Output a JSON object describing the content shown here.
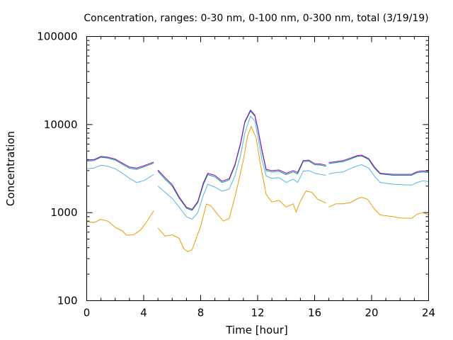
{
  "chart_data": {
    "type": "line",
    "title": "Concentration, ranges: 0-30 nm, 0-100 nm, 0-300 nm, total (3/19/19)",
    "xlabel": "Time [hour]",
    "ylabel": "Concentration",
    "xlim": [
      0,
      24
    ],
    "ylim": [
      100,
      100000
    ],
    "yscale": "log",
    "grid": false,
    "legend": "none",
    "x_ticks": [
      0,
      4,
      8,
      12,
      16,
      20,
      24
    ],
    "x_tick_labels": [
      "0",
      "4",
      "8",
      "12",
      "16",
      "20",
      "24"
    ],
    "y_ticks": [
      100,
      1000,
      10000,
      100000
    ],
    "y_tick_labels": [
      "100",
      "1000",
      "10000",
      "100000"
    ],
    "series": [
      {
        "color": "#e5a000",
        "segments": [
          [
            [
              0.0,
              790
            ],
            [
              0.5,
              770
            ],
            [
              1.0,
              840
            ],
            [
              1.5,
              800
            ],
            [
              2.0,
              680
            ],
            [
              2.5,
              620
            ],
            [
              2.8,
              555
            ],
            [
              3.3,
              560
            ],
            [
              3.8,
              640
            ],
            [
              4.2,
              780
            ],
            [
              4.7,
              1050
            ]
          ],
          [
            [
              5.0,
              670
            ],
            [
              5.5,
              540
            ],
            [
              6.0,
              560
            ],
            [
              6.5,
              510
            ],
            [
              6.8,
              390
            ],
            [
              7.1,
              360
            ],
            [
              7.4,
              380
            ],
            [
              8.0,
              700
            ],
            [
              8.4,
              1250
            ],
            [
              8.7,
              1200
            ],
            [
              9.2,
              950
            ],
            [
              9.6,
              800
            ],
            [
              10.0,
              860
            ],
            [
              10.4,
              1500
            ],
            [
              10.7,
              2400
            ],
            [
              11.0,
              4000
            ],
            [
              11.3,
              7500
            ],
            [
              11.55,
              9500
            ],
            [
              11.9,
              7000
            ],
            [
              12.2,
              3500
            ],
            [
              12.6,
              1600
            ],
            [
              13.0,
              1320
            ],
            [
              13.5,
              1380
            ],
            [
              14.0,
              1160
            ],
            [
              14.5,
              1260
            ],
            [
              14.7,
              1010
            ],
            [
              15.0,
              1350
            ],
            [
              15.4,
              1760
            ],
            [
              15.8,
              1700
            ],
            [
              16.2,
              1430
            ],
            [
              16.8,
              1280
            ]
          ],
          [
            [
              17.0,
              1160
            ],
            [
              17.5,
              1260
            ],
            [
              18.0,
              1260
            ],
            [
              18.5,
              1300
            ],
            [
              19.0,
              1440
            ],
            [
              19.3,
              1490
            ],
            [
              19.7,
              1420
            ],
            [
              20.2,
              1100
            ],
            [
              20.6,
              940
            ],
            [
              21.5,
              900
            ],
            [
              22.0,
              870
            ],
            [
              22.8,
              860
            ],
            [
              23.2,
              960
            ],
            [
              23.6,
              1000
            ],
            [
              24.0,
              940
            ]
          ]
        ]
      },
      {
        "color": "#56b4e9",
        "segments": [
          [
            [
              0.0,
              3150
            ],
            [
              0.5,
              3200
            ],
            [
              1.0,
              3450
            ],
            [
              1.5,
              3350
            ],
            [
              2.0,
              3150
            ],
            [
              2.5,
              2800
            ],
            [
              3.0,
              2450
            ],
            [
              3.5,
              2200
            ],
            [
              4.0,
              2300
            ],
            [
              4.7,
              2700
            ]
          ],
          [
            [
              5.0,
              2000
            ],
            [
              5.5,
              1700
            ],
            [
              6.0,
              1450
            ],
            [
              6.5,
              1150
            ],
            [
              7.0,
              900
            ],
            [
              7.4,
              840
            ],
            [
              7.8,
              1000
            ],
            [
              8.2,
              1600
            ],
            [
              8.5,
              2100
            ],
            [
              9.0,
              1950
            ],
            [
              9.5,
              1750
            ],
            [
              10.0,
              1850
            ],
            [
              10.4,
              2600
            ],
            [
              10.8,
              4500
            ],
            [
              11.1,
              8000
            ],
            [
              11.5,
              12500
            ],
            [
              11.8,
              11000
            ],
            [
              12.0,
              7500
            ],
            [
              12.3,
              4000
            ],
            [
              12.6,
              2600
            ],
            [
              13.0,
              2450
            ],
            [
              13.5,
              2500
            ],
            [
              14.0,
              2200
            ],
            [
              14.5,
              2400
            ],
            [
              14.8,
              2200
            ],
            [
              15.2,
              2950
            ],
            [
              15.6,
              3000
            ],
            [
              16.0,
              2800
            ],
            [
              16.5,
              2700
            ],
            [
              16.8,
              2650
            ]
          ],
          [
            [
              17.0,
              2750
            ],
            [
              17.5,
              2850
            ],
            [
              18.0,
              2900
            ],
            [
              18.5,
              3150
            ],
            [
              19.0,
              3400
            ],
            [
              19.3,
              3500
            ],
            [
              19.8,
              3200
            ],
            [
              20.2,
              2600
            ],
            [
              20.6,
              2200
            ],
            [
              21.5,
              2100
            ],
            [
              22.0,
              2080
            ],
            [
              22.8,
              2050
            ],
            [
              23.2,
              2200
            ],
            [
              23.6,
              2300
            ],
            [
              24.0,
              2250
            ]
          ]
        ]
      },
      {
        "color": "#009e73",
        "segments": [
          [
            [
              0.0,
              3850
            ],
            [
              0.5,
              3900
            ],
            [
              1.0,
              4250
            ],
            [
              1.5,
              4150
            ],
            [
              2.0,
              3950
            ],
            [
              2.5,
              3550
            ],
            [
              3.0,
              3200
            ],
            [
              3.5,
              3100
            ],
            [
              4.0,
              3300
            ],
            [
              4.7,
              3650
            ]
          ],
          [
            [
              5.0,
              2950
            ],
            [
              5.5,
              2400
            ],
            [
              6.0,
              2000
            ],
            [
              6.5,
              1450
            ],
            [
              7.0,
              1120
            ],
            [
              7.4,
              1060
            ],
            [
              7.8,
              1300
            ],
            [
              8.2,
              2100
            ],
            [
              8.5,
              2700
            ],
            [
              9.0,
              2550
            ],
            [
              9.5,
              2200
            ],
            [
              10.0,
              2350
            ],
            [
              10.4,
              3400
            ],
            [
              10.8,
              6000
            ],
            [
              11.1,
              10500
            ],
            [
              11.5,
              14200
            ],
            [
              11.8,
              12500
            ],
            [
              12.0,
              9000
            ],
            [
              12.3,
              5000
            ],
            [
              12.6,
              3000
            ],
            [
              13.0,
              2900
            ],
            [
              13.5,
              2950
            ],
            [
              14.0,
              2700
            ],
            [
              14.5,
              2900
            ],
            [
              14.8,
              2750
            ],
            [
              15.2,
              3800
            ],
            [
              15.6,
              3850
            ],
            [
              16.0,
              3500
            ],
            [
              16.5,
              3450
            ],
            [
              16.8,
              3350
            ]
          ],
          [
            [
              17.0,
              3600
            ],
            [
              17.5,
              3700
            ],
            [
              18.0,
              3800
            ],
            [
              18.5,
              4050
            ],
            [
              19.0,
              4350
            ],
            [
              19.3,
              4400
            ],
            [
              19.8,
              4000
            ],
            [
              20.2,
              3200
            ],
            [
              20.6,
              2750
            ],
            [
              21.5,
              2650
            ],
            [
              22.0,
              2650
            ],
            [
              22.8,
              2650
            ],
            [
              23.2,
              2850
            ],
            [
              23.6,
              2900
            ],
            [
              24.0,
              2850
            ]
          ]
        ]
      },
      {
        "color": "#9400d3",
        "segments": [
          [
            [
              0.0,
              3950
            ],
            [
              0.5,
              4000
            ],
            [
              1.0,
              4350
            ],
            [
              1.5,
              4250
            ],
            [
              2.0,
              4050
            ],
            [
              2.5,
              3650
            ],
            [
              3.0,
              3300
            ],
            [
              3.5,
              3200
            ],
            [
              4.0,
              3400
            ],
            [
              4.7,
              3750
            ]
          ],
          [
            [
              5.0,
              3050
            ],
            [
              5.5,
              2500
            ],
            [
              6.0,
              2080
            ],
            [
              6.5,
              1500
            ],
            [
              7.0,
              1150
            ],
            [
              7.4,
              1090
            ],
            [
              7.8,
              1340
            ],
            [
              8.2,
              2200
            ],
            [
              8.5,
              2800
            ],
            [
              9.0,
              2650
            ],
            [
              9.5,
              2280
            ],
            [
              10.0,
              2430
            ],
            [
              10.4,
              3500
            ],
            [
              10.8,
              6200
            ],
            [
              11.1,
              10800
            ],
            [
              11.5,
              14600
            ],
            [
              11.8,
              12800
            ],
            [
              12.0,
              9300
            ],
            [
              12.3,
              5200
            ],
            [
              12.6,
              3100
            ],
            [
              13.0,
              3000
            ],
            [
              13.5,
              3050
            ],
            [
              14.0,
              2800
            ],
            [
              14.5,
              3000
            ],
            [
              14.8,
              2850
            ],
            [
              15.2,
              3900
            ],
            [
              15.6,
              3950
            ],
            [
              16.0,
              3600
            ],
            [
              16.5,
              3550
            ],
            [
              16.8,
              3450
            ]
          ],
          [
            [
              17.0,
              3700
            ],
            [
              17.5,
              3800
            ],
            [
              18.0,
              3900
            ],
            [
              18.5,
              4150
            ],
            [
              19.0,
              4450
            ],
            [
              19.3,
              4500
            ],
            [
              19.8,
              4100
            ],
            [
              20.2,
              3300
            ],
            [
              20.6,
              2800
            ],
            [
              21.5,
              2720
            ],
            [
              22.0,
              2720
            ],
            [
              22.8,
              2720
            ],
            [
              23.2,
              2920
            ],
            [
              23.6,
              2980
            ],
            [
              24.0,
              2930
            ]
          ]
        ]
      }
    ]
  }
}
